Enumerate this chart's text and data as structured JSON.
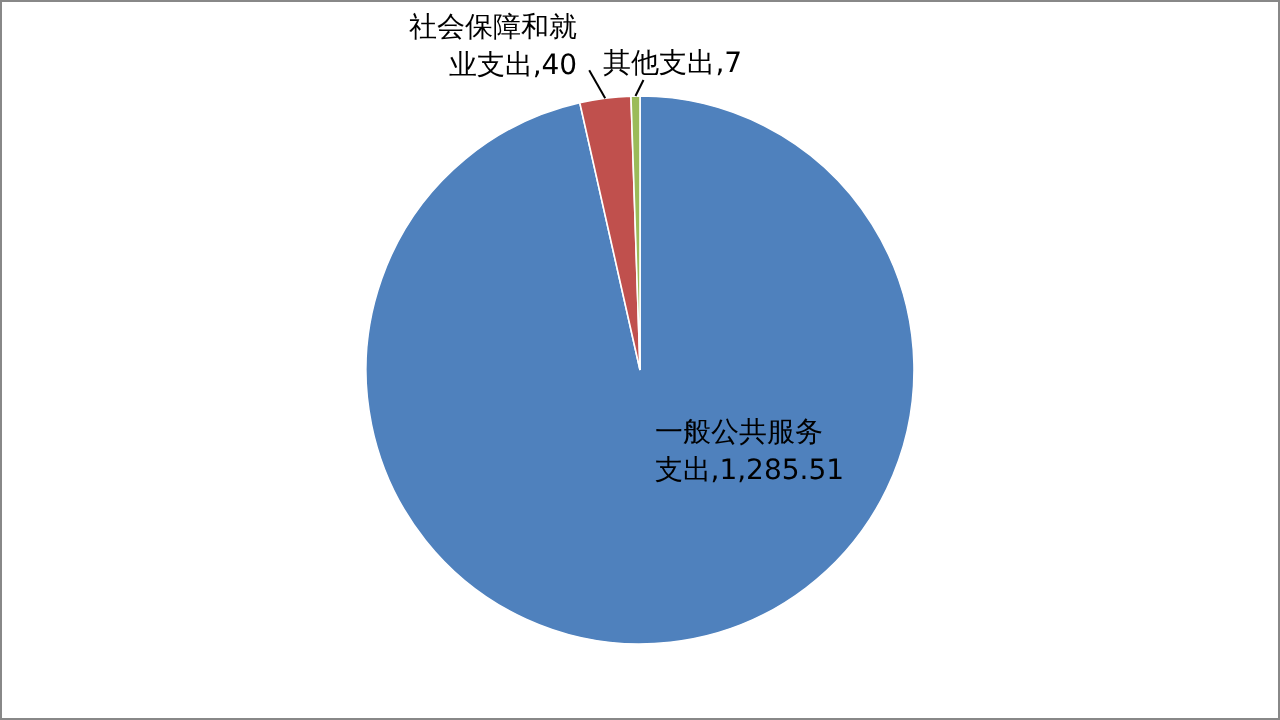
{
  "chart_data": {
    "type": "pie",
    "categories": [
      "一般公共服务支出",
      "社会保障和就业支出",
      "其他支出"
    ],
    "values": [
      1285.51,
      40,
      7
    ],
    "colors": [
      "#4f81bd",
      "#c0504d",
      "#9bbb59"
    ],
    "value_labels": [
      ",1,285.51",
      ",40",
      ",7"
    ]
  }
}
